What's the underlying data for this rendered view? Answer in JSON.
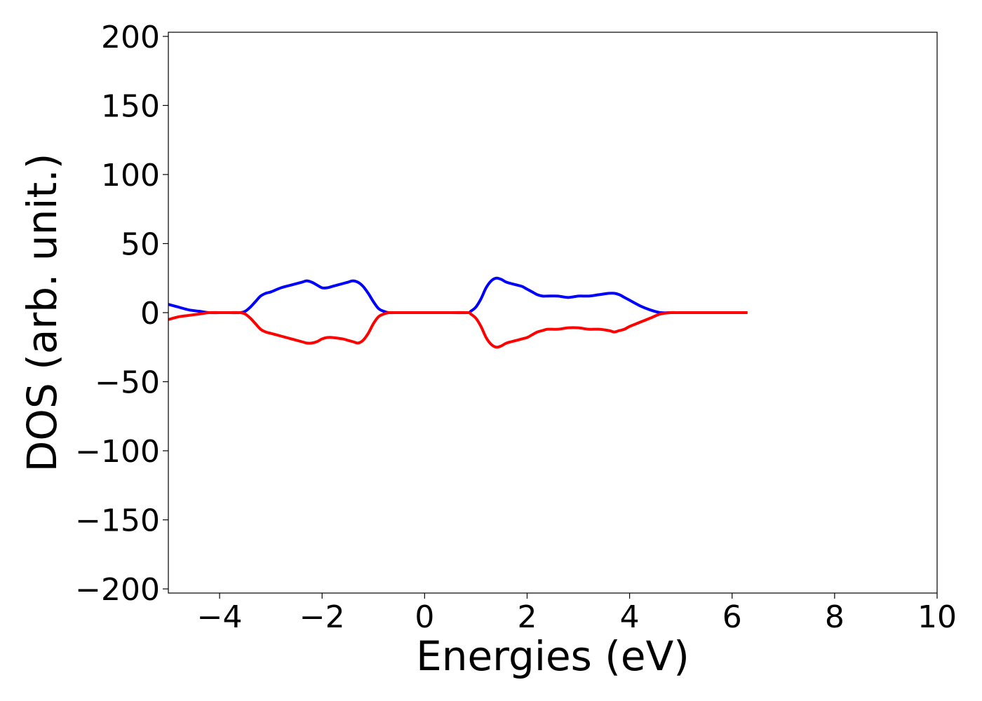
{
  "chart_data": {
    "type": "line",
    "title": "",
    "xlabel": "Energies (eV)",
    "ylabel": "DOS (arb. unit.)",
    "xlim": [
      -5,
      10
    ],
    "ylim": [
      -203,
      203
    ],
    "xticks": [
      -4,
      -2,
      0,
      2,
      4,
      6,
      8,
      10
    ],
    "xtick_labels": [
      "−4",
      "−2",
      "0",
      "2",
      "4",
      "6",
      "8",
      "10"
    ],
    "yticks": [
      -200,
      -150,
      -100,
      -50,
      0,
      50,
      100,
      150,
      200
    ],
    "ytick_labels": [
      "−200",
      "−150",
      "−100",
      "−50",
      "0",
      "50",
      "100",
      "150",
      "200"
    ],
    "grid": false,
    "legend": "none",
    "series": [
      {
        "color": "#0000ff",
        "x": [
          -5.0,
          -4.8,
          -4.6,
          -4.4,
          -4.2,
          -4.0,
          -3.8,
          -3.6,
          -3.5,
          -3.4,
          -3.3,
          -3.2,
          -3.1,
          -3.0,
          -2.8,
          -2.6,
          -2.4,
          -2.3,
          -2.2,
          -2.1,
          -2.0,
          -1.9,
          -1.8,
          -1.6,
          -1.5,
          -1.4,
          -1.3,
          -1.2,
          -1.1,
          -1.0,
          -0.9,
          -0.8,
          -0.7,
          -0.6,
          -0.4,
          0.0,
          0.5,
          0.85,
          0.9,
          1.0,
          1.1,
          1.2,
          1.3,
          1.4,
          1.5,
          1.6,
          1.8,
          1.9,
          2.0,
          2.1,
          2.2,
          2.3,
          2.4,
          2.6,
          2.8,
          3.0,
          3.2,
          3.4,
          3.6,
          3.7,
          3.8,
          3.9,
          4.0,
          4.2,
          4.4,
          4.6,
          4.8,
          5.0,
          6.0,
          6.3
        ],
        "y": [
          6,
          4,
          2,
          1,
          0,
          0,
          0,
          0,
          1,
          4,
          8,
          12,
          14,
          15,
          18,
          20,
          22,
          23,
          22,
          20,
          18,
          18,
          19,
          21,
          22,
          23,
          22,
          19,
          14,
          8,
          3,
          1,
          0,
          0,
          0,
          0,
          0,
          0,
          1,
          4,
          10,
          18,
          23,
          25,
          24,
          22,
          20,
          19,
          17,
          15,
          13,
          12,
          12,
          12,
          11,
          12,
          12,
          13,
          14,
          14,
          13,
          11,
          9,
          5,
          2,
          0,
          0,
          0,
          0,
          0
        ]
      },
      {
        "color": "#ff0000",
        "x": [
          -5.0,
          -4.8,
          -4.6,
          -4.4,
          -4.2,
          -4.0,
          -3.8,
          -3.6,
          -3.5,
          -3.4,
          -3.3,
          -3.2,
          -3.1,
          -3.0,
          -2.8,
          -2.6,
          -2.4,
          -2.3,
          -2.2,
          -2.1,
          -2.0,
          -1.9,
          -1.8,
          -1.6,
          -1.5,
          -1.4,
          -1.3,
          -1.2,
          -1.1,
          -1.0,
          -0.9,
          -0.8,
          -0.7,
          -0.6,
          -0.4,
          0.0,
          0.5,
          0.85,
          0.9,
          1.0,
          1.1,
          1.2,
          1.3,
          1.4,
          1.5,
          1.6,
          1.8,
          1.9,
          2.0,
          2.1,
          2.2,
          2.3,
          2.4,
          2.6,
          2.8,
          3.0,
          3.2,
          3.4,
          3.6,
          3.7,
          3.8,
          3.9,
          4.0,
          4.2,
          4.4,
          4.6,
          4.8,
          5.0,
          6.0,
          6.3
        ],
        "y": [
          -5,
          -3,
          -2,
          -1,
          0,
          0,
          0,
          0,
          -1,
          -4,
          -8,
          -12,
          -14,
          -15,
          -17,
          -19,
          -21,
          -22,
          -22,
          -21,
          -19,
          -18,
          -18,
          -19,
          -20,
          -21,
          -22,
          -20,
          -15,
          -8,
          -3,
          -1,
          0,
          0,
          0,
          0,
          0,
          0,
          -1,
          -4,
          -10,
          -18,
          -23,
          -25,
          -24,
          -22,
          -20,
          -19,
          -18,
          -16,
          -14,
          -13,
          -12,
          -12,
          -11,
          -11,
          -12,
          -12,
          -13,
          -14,
          -13,
          -12,
          -10,
          -7,
          -4,
          -1,
          0,
          0,
          0,
          0
        ]
      }
    ]
  }
}
